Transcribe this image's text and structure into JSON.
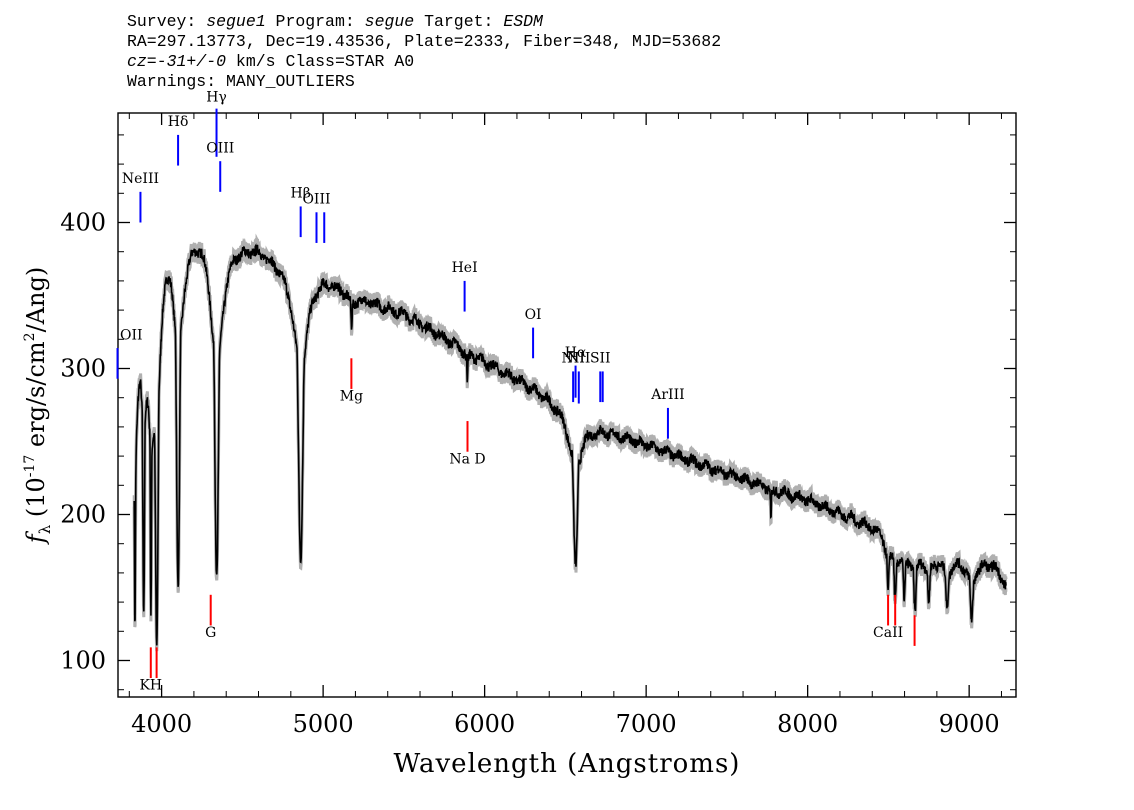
{
  "header": {
    "line1": {
      "survey_label": "Survey: ",
      "survey": "segue1",
      "program_label": " Program: ",
      "program": "segue",
      "target_label": " Target: ",
      "target": "ESDM"
    },
    "line2": "RA=297.13773, Dec=19.43536, Plate=2333, Fiber=348, MJD=53682",
    "line3": {
      "cz": "cz=-31+/-0",
      "rest": " km/s Class=STAR A0"
    },
    "line4": "Warnings: MANY_OUTLIERS"
  },
  "chart_data": {
    "type": "line",
    "xlabel": "Wavelength (Angstroms)",
    "ylabel_parts": {
      "f": "f",
      "sub": "λ",
      "pre": " (10",
      "exp": "-17",
      "mid": " erg/s/cm",
      "exp2": "2",
      "post": "/Ang)"
    },
    "xlim": [
      3730,
      9290
    ],
    "ylim": [
      75,
      475
    ],
    "x_ticks": [
      4000,
      5000,
      6000,
      7000,
      8000,
      9000
    ],
    "x_tick_labels": [
      "4000",
      "5000",
      "6000",
      "7000",
      "8000",
      "9000"
    ],
    "y_ticks": [
      100,
      200,
      300,
      400
    ],
    "y_tick_labels": [
      "100",
      "200",
      "300",
      "400"
    ],
    "colors": {
      "spectrum": "#000000",
      "error": "#b0b0b0",
      "emission": "#0000ff",
      "absorption": "#ff0000"
    },
    "continuum": [
      [
        3830,
        280
      ],
      [
        3870,
        345
      ],
      [
        3900,
        350
      ],
      [
        3950,
        340
      ],
      [
        4000,
        390
      ],
      [
        4060,
        410
      ],
      [
        4150,
        398
      ],
      [
        4250,
        400
      ],
      [
        4350,
        380
      ],
      [
        4450,
        387
      ],
      [
        4600,
        385
      ],
      [
        4800,
        372
      ],
      [
        5000,
        366
      ],
      [
        5200,
        350
      ],
      [
        5500,
        338
      ],
      [
        5800,
        318
      ],
      [
        6000,
        305
      ],
      [
        6300,
        287
      ],
      [
        6500,
        273
      ],
      [
        6650,
        262
      ],
      [
        7000,
        248
      ],
      [
        7500,
        228
      ],
      [
        8000,
        210
      ],
      [
        8400,
        192
      ],
      [
        8600,
        180
      ],
      [
        8800,
        172
      ],
      [
        9000,
        168
      ],
      [
        9150,
        166
      ],
      [
        9230,
        152
      ]
    ],
    "absorption_dips": [
      {
        "center": 3835,
        "min": 130,
        "width": 5
      },
      {
        "center": 3889,
        "min": 142,
        "width": 8
      },
      {
        "center": 3934,
        "min": 150,
        "width": 5
      },
      {
        "center": 3970,
        "min": 118,
        "width": 12
      },
      {
        "center": 4102,
        "min": 152,
        "width": 14
      },
      {
        "center": 4341,
        "min": 156,
        "width": 16
      },
      {
        "center": 4861,
        "min": 170,
        "width": 20
      },
      {
        "center": 5176,
        "min": 330,
        "width": 6
      },
      {
        "center": 5893,
        "min": 290,
        "width": 4
      },
      {
        "center": 6563,
        "min": 163,
        "width": 18
      },
      {
        "center": 7773,
        "min": 196,
        "width": 3
      },
      {
        "center": 8498,
        "min": 150,
        "width": 8
      },
      {
        "center": 8542,
        "min": 146,
        "width": 9
      },
      {
        "center": 8598,
        "min": 145,
        "width": 9
      },
      {
        "center": 8665,
        "min": 135,
        "width": 10
      },
      {
        "center": 8750,
        "min": 141,
        "width": 10
      },
      {
        "center": 8863,
        "min": 137,
        "width": 11
      },
      {
        "center": 9015,
        "min": 127,
        "width": 12
      }
    ],
    "emission_lines": [
      {
        "label": "OII",
        "x": 3727,
        "y0": 293,
        "y1": 314,
        "label_y": 320
      },
      {
        "label": "NeIII",
        "x": 3869,
        "y0": 400,
        "y1": 421,
        "label_y": 427
      },
      {
        "label": "Hδ",
        "x": 4102,
        "y0": 439,
        "y1": 460,
        "label_y": 466
      },
      {
        "label": "Hγ",
        "x": 4340,
        "y0": 445,
        "y1": 478,
        "label_y": 483
      },
      {
        "label": "OIII",
        "x": 4363,
        "y0": 421,
        "y1": 442,
        "label_y": 448
      },
      {
        "label": "Hβ",
        "x": 4861,
        "y0": 390,
        "y1": 411,
        "label_y": 417
      },
      {
        "label": "OIII",
        "x": 4959,
        "y0": 386,
        "y1": 407,
        "label_y": 413
      },
      {
        "label": "",
        "x": 5007,
        "y0": 386,
        "y1": 407,
        "label_y": null
      },
      {
        "label": "HeI",
        "x": 5876,
        "y0": 339,
        "y1": 360,
        "label_y": 366
      },
      {
        "label": "OI",
        "x": 6300,
        "y0": 307,
        "y1": 328,
        "label_y": 334
      },
      {
        "label": "NII",
        "x": 6548,
        "y0": 277,
        "y1": 298,
        "label_y": 304
      },
      {
        "label": "Hα",
        "x": 6563,
        "y0": 280,
        "y1": 302,
        "label_y": 308
      },
      {
        "label": "NII",
        "x": 6583,
        "y0": 276,
        "y1": 298,
        "label_y": 304
      },
      {
        "label": "SII",
        "x": 6716,
        "y0": 277,
        "y1": 298,
        "label_y": 304
      },
      {
        "label": "",
        "x": 6731,
        "y0": 277,
        "y1": 298,
        "label_y": null
      },
      {
        "label": "ArIII",
        "x": 7135,
        "y0": 252,
        "y1": 273,
        "label_y": 279
      }
    ],
    "absorption_lines": [
      {
        "label": "KH",
        "x": 3933,
        "y0": 88,
        "y1": 109,
        "label_y": 80
      },
      {
        "label": "",
        "x": 3969,
        "y0": 88,
        "y1": 109,
        "label_y": null
      },
      {
        "label": "G",
        "x": 4304,
        "y0": 124,
        "y1": 145,
        "label_y": 116
      },
      {
        "label": "Mg",
        "x": 5175,
        "y0": 286,
        "y1": 307,
        "label_y": 278
      },
      {
        "label": "Na  D",
        "x": 5894,
        "y0": 243,
        "y1": 264,
        "label_y": 235
      },
      {
        "label": "CaII",
        "x": 8498,
        "y0": 124,
        "y1": 145,
        "label_y": 116
      },
      {
        "label": "",
        "x": 8542,
        "y0": 124,
        "y1": 145,
        "label_y": null
      },
      {
        "label": "",
        "x": 8662,
        "y0": 110,
        "y1": 131,
        "label_y": null
      }
    ]
  }
}
